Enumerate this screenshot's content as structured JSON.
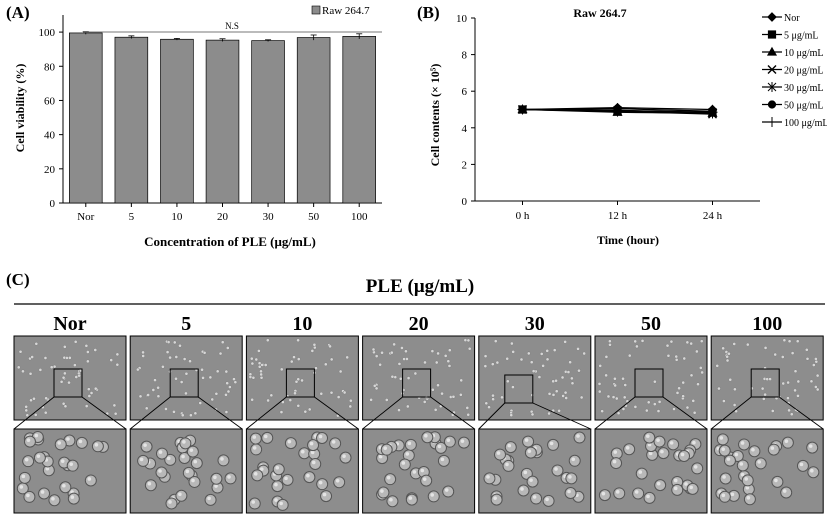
{
  "chart_data": [
    {
      "panel": "(A)",
      "type": "bar",
      "categories": [
        "Nor",
        "5",
        "10",
        "20",
        "30",
        "50",
        "100"
      ],
      "series": [
        {
          "name": "Raw 264.7",
          "values": [
            99.5,
            97.0,
            95.8,
            95.3,
            95.0,
            96.8,
            97.5
          ],
          "error": [
            0.8,
            0.8,
            0.5,
            0.8,
            0.5,
            1.5,
            1.5
          ]
        }
      ],
      "xlabel": "Concentration of PLE (μg/mL)",
      "ylabel": "Cell viability (%)",
      "ylim": [
        0,
        100
      ],
      "yticks": [
        "0",
        "20",
        "40",
        "60",
        "80",
        "100"
      ],
      "annotation": "N.S",
      "grid": false
    },
    {
      "panel": "(B)",
      "type": "line",
      "title": "Raw 264.7",
      "x": [
        "0 h",
        "12 h",
        "24 h"
      ],
      "series": [
        {
          "name": "Nor",
          "values": [
            5.0,
            5.1,
            5.0
          ]
        },
        {
          "name": "5 μg/mL",
          "values": [
            5.0,
            4.9,
            4.85
          ]
        },
        {
          "name": "10 μg/mL",
          "values": [
            5.0,
            4.85,
            4.8
          ]
        },
        {
          "name": "20 μg/mL",
          "values": [
            5.0,
            4.9,
            4.75
          ]
        },
        {
          "name": "30 μg/mL",
          "values": [
            5.0,
            4.95,
            4.8
          ]
        },
        {
          "name": "50 μg/mL",
          "values": [
            5.0,
            5.05,
            4.9
          ]
        },
        {
          "name": "100 μg/mL",
          "values": [
            5.0,
            4.95,
            4.85
          ]
        }
      ],
      "xlabel": "Time (hour)",
      "ylabel": "Cell contents (× 10⁵)",
      "ylim": [
        0,
        10
      ],
      "yticks": [
        "0",
        "2",
        "4",
        "6",
        "8",
        "10"
      ],
      "legend": "right",
      "grid": false
    }
  ],
  "panel_c": {
    "label": "(C)",
    "heading": "PLE (μg/mL)",
    "columns": [
      "Nor",
      "5",
      "10",
      "20",
      "30",
      "50",
      "100"
    ]
  },
  "colors": {
    "bar_fill": "#8c8c8c",
    "micrograph_bg": "#8d8d8d",
    "cell_fill": "#b8b8b8",
    "cell_edge": "#555555"
  }
}
